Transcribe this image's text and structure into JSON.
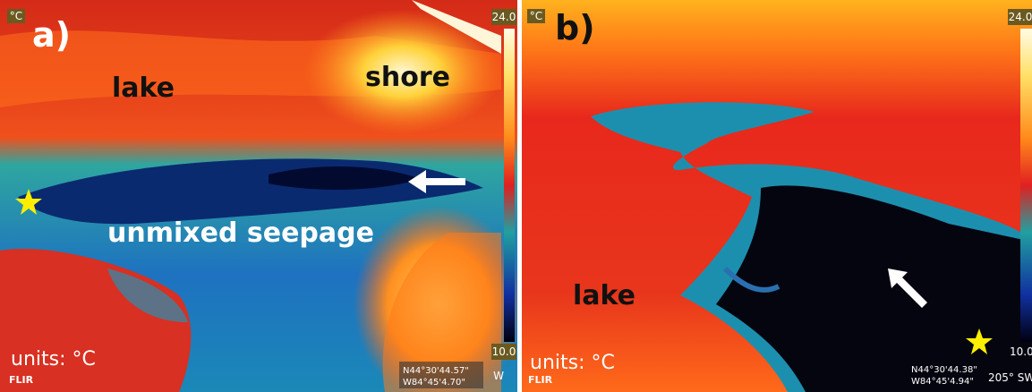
{
  "panels": [
    {
      "label": "a)",
      "unit_badge": "°C",
      "scale_max": "24.0",
      "scale_min": "10.0",
      "annotations": [
        "lake",
        "shore",
        "unmixed seepage"
      ],
      "units": "units: °C",
      "gps": [
        "N44°30'44.57\"",
        "W84°45'4.70\""
      ],
      "compass": "W",
      "brand": "FLIR"
    },
    {
      "label": "b)",
      "unit_badge": "°C",
      "scale_max": "24.0",
      "scale_min": "10.0",
      "annotations": [
        "lake"
      ],
      "units": "units: °C",
      "gps": [
        "N44°30'44.38\"",
        "W84°45'4.94\""
      ],
      "compass": "205° SW",
      "brand": "FLIR"
    }
  ]
}
